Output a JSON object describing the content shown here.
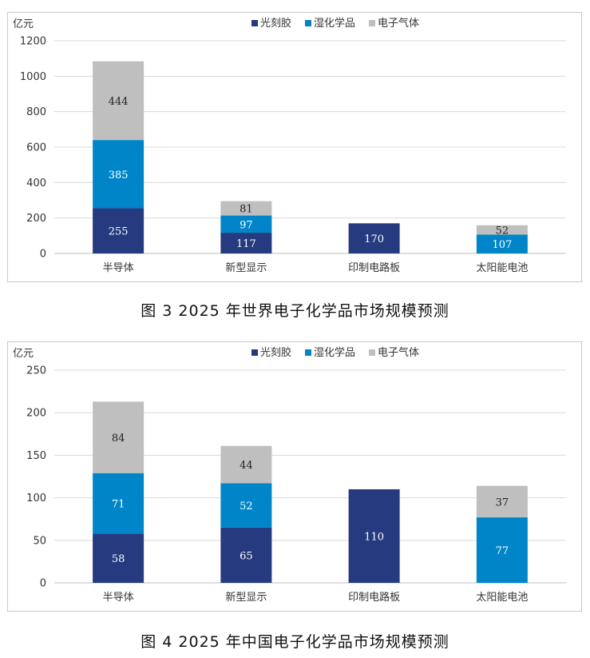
{
  "figures": [
    {
      "caption": "图 3  2025 年世界电子化学品市场规模预测",
      "chart_data": {
        "type": "bar",
        "stacked": true,
        "ylabel": "亿元",
        "ylim": [
          0,
          1200
        ],
        "yticks": [
          0,
          200,
          400,
          600,
          800,
          1000,
          1200
        ],
        "categories": [
          "半导体",
          "新型显示",
          "印制电路板",
          "太阳能电池"
        ],
        "series": [
          {
            "name": "光刻胶",
            "color": "#263a80",
            "values": [
              255,
              117,
              170,
              null
            ]
          },
          {
            "name": "湿化学品",
            "color": "#0086c8",
            "values": [
              385,
              97,
              null,
              107
            ]
          },
          {
            "name": "电子气体",
            "color": "#bfbfbf",
            "values": [
              444,
              81,
              null,
              52
            ]
          }
        ],
        "legend": "top-center",
        "grid": true
      }
    },
    {
      "caption": "图 4  2025 年中国电子化学品市场规模预测",
      "chart_data": {
        "type": "bar",
        "stacked": true,
        "ylabel": "亿元",
        "ylim": [
          0,
          250
        ],
        "yticks": [
          0,
          50,
          100,
          150,
          200,
          250
        ],
        "categories": [
          "半导体",
          "新型显示",
          "印制电路板",
          "太阳能电池"
        ],
        "series": [
          {
            "name": "光刻胶",
            "color": "#263a80",
            "values": [
              58,
              65,
              110,
              null
            ]
          },
          {
            "name": "湿化学品",
            "color": "#0086c8",
            "values": [
              71,
              52,
              null,
              77
            ]
          },
          {
            "name": "电子气体",
            "color": "#bfbfbf",
            "values": [
              84,
              44,
              null,
              37
            ]
          }
        ],
        "legend": "top-center",
        "grid": true
      }
    }
  ]
}
